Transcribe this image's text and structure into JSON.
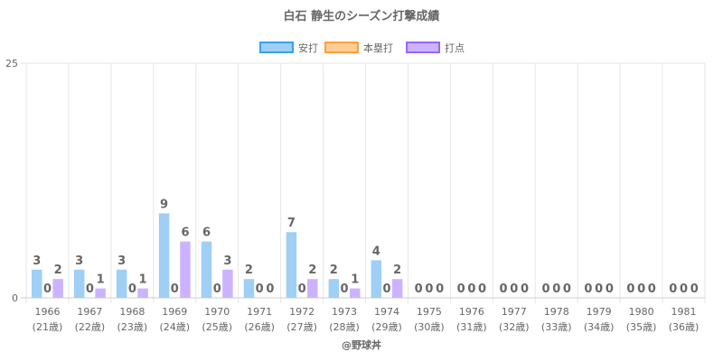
{
  "chart_data": {
    "type": "bar",
    "title": "白石 静生のシーズン打撃成績",
    "categories": [
      "1966",
      "1967",
      "1968",
      "1969",
      "1970",
      "1971",
      "1972",
      "1973",
      "1974",
      "1975",
      "1976",
      "1977",
      "1978",
      "1979",
      "1980",
      "1981"
    ],
    "sub_categories": [
      "(21歳)",
      "(22歳)",
      "(23歳)",
      "(24歳)",
      "(25歳)",
      "(26歳)",
      "(27歳)",
      "(28歳)",
      "(29歳)",
      "(30歳)",
      "(31歳)",
      "(32歳)",
      "(33歳)",
      "(34歳)",
      "(35歳)",
      "(36歳)"
    ],
    "series": [
      {
        "name": "安打",
        "color": "#9fcff5",
        "border": "#36a2eb",
        "values": [
          3,
          3,
          3,
          9,
          6,
          2,
          7,
          2,
          4,
          0,
          0,
          0,
          0,
          0,
          0,
          0
        ]
      },
      {
        "name": "本塁打",
        "color": "#ffcd94",
        "border": "#ff9f40",
        "values": [
          0,
          0,
          0,
          0,
          0,
          0,
          0,
          0,
          0,
          0,
          0,
          0,
          0,
          0,
          0,
          0
        ]
      },
      {
        "name": "打点",
        "color": "#ccb3ff",
        "border": "#9966ff",
        "values": [
          2,
          1,
          1,
          6,
          3,
          0,
          2,
          1,
          2,
          0,
          0,
          0,
          0,
          0,
          0,
          0
        ]
      }
    ],
    "ylim": [
      0,
      25
    ],
    "y_ticks": [
      "0",
      "25"
    ],
    "legend_position": "top",
    "grid": true,
    "credit": "@野球丼"
  }
}
